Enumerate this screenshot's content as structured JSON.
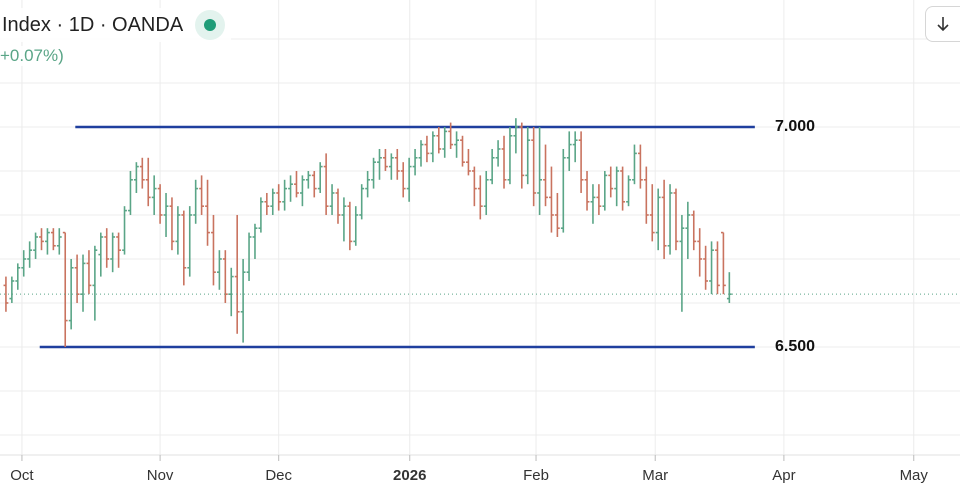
{
  "chart_data": {
    "type": "ohlc",
    "title": "Index · 1D · OANDA",
    "change_label": "+0.07%)",
    "up_color": "#5aa587",
    "down_color": "#c9735f",
    "xlim": [
      -4,
      157.9
    ],
    "ylim": [
      6.2545,
      7.2886
    ],
    "xticks": [
      {
        "value": -0.3,
        "label": "Oct"
      },
      {
        "value": 23,
        "label": "Nov"
      },
      {
        "value": 43,
        "label": "Dec"
      },
      {
        "value": 65.1,
        "label": "2026",
        "bold": true
      },
      {
        "value": 86.4,
        "label": "Feb"
      },
      {
        "value": 106.5,
        "label": "Mar"
      },
      {
        "value": 128.2,
        "label": "Apr"
      },
      {
        "value": 150.1,
        "label": "May"
      }
    ],
    "ygrid": [
      7.2,
      7.1,
      7.0,
      6.9,
      6.8,
      6.7,
      6.6,
      6.5,
      6.4,
      6.3
    ],
    "grid": true,
    "hlines": [
      {
        "value": 7.0,
        "label": "7.000",
        "x_from": 8.7,
        "x_to": 123.3,
        "color": "#1f3f9e"
      },
      {
        "value": 6.5,
        "label": "6.500",
        "x_from": 2.7,
        "x_to": 123.3,
        "color": "#1f3f9e"
      }
    ],
    "x": [
      -3,
      -2,
      -1,
      0,
      1,
      2,
      3,
      4,
      5,
      6,
      7,
      8,
      9,
      10,
      11,
      12,
      13,
      14,
      15,
      16,
      17,
      18,
      19,
      20,
      21,
      22,
      23,
      24,
      25,
      26,
      27,
      28,
      29,
      30,
      31,
      32,
      33,
      34,
      35,
      36,
      37,
      38,
      39,
      40,
      41,
      42,
      43,
      44,
      45,
      46,
      47,
      48,
      49,
      50,
      51,
      52,
      53,
      54,
      55,
      56,
      57,
      58,
      59,
      60,
      61,
      62,
      63,
      64,
      65,
      66,
      67,
      68,
      69,
      70,
      71,
      72,
      73,
      74,
      75,
      76,
      77,
      78,
      79,
      80,
      81,
      82,
      83,
      84,
      85,
      86,
      87,
      88,
      89,
      90,
      91,
      92,
      93,
      94,
      95,
      96,
      97,
      98,
      99,
      100,
      101,
      102,
      103,
      104,
      105,
      106,
      107,
      108,
      109,
      110,
      111,
      112,
      113,
      114,
      115,
      116,
      117,
      118,
      119
    ],
    "ohlc": [
      [
        6.64,
        6.66,
        6.58,
        6.6
      ],
      [
        6.61,
        6.66,
        6.6,
        6.65
      ],
      [
        6.65,
        6.69,
        6.63,
        6.68
      ],
      [
        6.68,
        6.72,
        6.66,
        6.7
      ],
      [
        6.7,
        6.74,
        6.68,
        6.72
      ],
      [
        6.72,
        6.76,
        6.7,
        6.75
      ],
      [
        6.75,
        6.77,
        6.72,
        6.74
      ],
      [
        6.74,
        6.77,
        6.71,
        6.76
      ],
      [
        6.76,
        6.77,
        6.72,
        6.73
      ],
      [
        6.73,
        6.77,
        6.71,
        6.75
      ],
      [
        6.76,
        6.76,
        6.5,
        6.56
      ],
      [
        6.56,
        6.7,
        6.54,
        6.68
      ],
      [
        6.68,
        6.71,
        6.6,
        6.62
      ],
      [
        6.62,
        6.71,
        6.58,
        6.69
      ],
      [
        6.69,
        6.72,
        6.62,
        6.64
      ],
      [
        6.64,
        6.73,
        6.56,
        6.72
      ],
      [
        6.71,
        6.76,
        6.66,
        6.75
      ],
      [
        6.75,
        6.77,
        6.68,
        6.7
      ],
      [
        6.7,
        6.76,
        6.67,
        6.75
      ],
      [
        6.75,
        6.76,
        6.68,
        6.72
      ],
      [
        6.72,
        6.82,
        6.71,
        6.81
      ],
      [
        6.81,
        6.9,
        6.8,
        6.88
      ],
      [
        6.88,
        6.92,
        6.85,
        6.91
      ],
      [
        6.91,
        6.93,
        6.86,
        6.88
      ],
      [
        6.88,
        6.93,
        6.82,
        6.84
      ],
      [
        6.84,
        6.89,
        6.8,
        6.86
      ],
      [
        6.86,
        6.87,
        6.78,
        6.8
      ],
      [
        6.8,
        6.85,
        6.75,
        6.82
      ],
      [
        6.82,
        6.84,
        6.72,
        6.74
      ],
      [
        6.74,
        6.82,
        6.71,
        6.8
      ],
      [
        6.8,
        6.81,
        6.64,
        6.68
      ],
      [
        6.68,
        6.82,
        6.66,
        6.8
      ],
      [
        6.8,
        6.88,
        6.78,
        6.86
      ],
      [
        6.86,
        6.89,
        6.8,
        6.82
      ],
      [
        6.82,
        6.88,
        6.73,
        6.76
      ],
      [
        6.76,
        6.8,
        6.64,
        6.67
      ],
      [
        6.67,
        6.72,
        6.63,
        6.7
      ],
      [
        6.7,
        6.72,
        6.6,
        6.62
      ],
      [
        6.62,
        6.68,
        6.57,
        6.66
      ],
      [
        6.66,
        6.8,
        6.53,
        6.58
      ],
      [
        6.58,
        6.7,
        6.51,
        6.67
      ],
      [
        6.67,
        6.76,
        6.65,
        6.75
      ],
      [
        6.75,
        6.78,
        6.7,
        6.77
      ],
      [
        6.77,
        6.84,
        6.76,
        6.83
      ],
      [
        6.83,
        6.85,
        6.8,
        6.82
      ],
      [
        6.82,
        6.86,
        6.8,
        6.85
      ],
      [
        6.85,
        6.87,
        6.81,
        6.83
      ],
      [
        6.83,
        6.88,
        6.81,
        6.86
      ],
      [
        6.86,
        6.89,
        6.83,
        6.87
      ],
      [
        6.87,
        6.9,
        6.84,
        6.85
      ],
      [
        6.85,
        6.89,
        6.82,
        6.88
      ],
      [
        6.88,
        6.9,
        6.86,
        6.89
      ],
      [
        6.89,
        6.9,
        6.84,
        6.86
      ],
      [
        6.86,
        6.92,
        6.85,
        6.91
      ],
      [
        6.91,
        6.94,
        6.8,
        6.82
      ],
      [
        6.82,
        6.87,
        6.8,
        6.85
      ],
      [
        6.85,
        6.86,
        6.78,
        6.8
      ],
      [
        6.8,
        6.84,
        6.74,
        6.82
      ],
      [
        6.82,
        6.83,
        6.72,
        6.74
      ],
      [
        6.74,
        6.82,
        6.73,
        6.8
      ],
      [
        6.8,
        6.87,
        6.79,
        6.86
      ],
      [
        6.86,
        6.9,
        6.84,
        6.88
      ],
      [
        6.88,
        6.93,
        6.86,
        6.92
      ],
      [
        6.92,
        6.95,
        6.88,
        6.93
      ],
      [
        6.93,
        6.95,
        6.9,
        6.91
      ],
      [
        6.91,
        6.94,
        6.88,
        6.93
      ],
      [
        6.93,
        6.95,
        6.88,
        6.9
      ],
      [
        6.9,
        6.92,
        6.84,
        6.86
      ],
      [
        6.86,
        6.93,
        6.83,
        6.91
      ],
      [
        6.91,
        6.95,
        6.89,
        6.93
      ],
      [
        6.93,
        6.97,
        6.91,
        6.96
      ],
      [
        6.96,
        6.98,
        6.92,
        6.94
      ],
      [
        6.94,
        6.99,
        6.92,
        6.98
      ],
      [
        6.98,
        7.0,
        6.94,
        6.95
      ],
      [
        6.95,
        7.0,
        6.93,
        6.99
      ],
      [
        6.99,
        7.01,
        6.95,
        6.96
      ],
      [
        6.96,
        6.99,
        6.93,
        6.97
      ],
      [
        6.97,
        6.98,
        6.91,
        6.92
      ],
      [
        6.92,
        6.95,
        6.89,
        6.9
      ],
      [
        6.9,
        6.91,
        6.82,
        6.86
      ],
      [
        6.86,
        6.89,
        6.79,
        6.82
      ],
      [
        6.82,
        6.9,
        6.8,
        6.88
      ],
      [
        6.88,
        6.95,
        6.87,
        6.93
      ],
      [
        6.93,
        6.97,
        6.91,
        6.95
      ],
      [
        6.95,
        6.98,
        6.86,
        6.88
      ],
      [
        6.88,
        7.0,
        6.87,
        6.98
      ],
      [
        6.98,
        7.02,
        6.94,
        7.0
      ],
      [
        7.0,
        7.01,
        6.86,
        6.89
      ],
      [
        6.89,
        7.0,
        6.87,
        6.97
      ],
      [
        6.97,
        7.0,
        6.82,
        6.85
      ],
      [
        6.85,
        7.0,
        6.8,
        6.88
      ],
      [
        6.88,
        6.96,
        6.82,
        6.84
      ],
      [
        6.84,
        6.91,
        6.76,
        6.8
      ],
      [
        6.8,
        6.85,
        6.75,
        6.77
      ],
      [
        6.77,
        6.95,
        6.76,
        6.93
      ],
      [
        6.93,
        6.99,
        6.9,
        6.96
      ],
      [
        6.96,
        6.99,
        6.92,
        6.97
      ],
      [
        6.97,
        6.99,
        6.85,
        6.88
      ],
      [
        6.88,
        6.9,
        6.81,
        6.83
      ],
      [
        6.83,
        6.87,
        6.78,
        6.84
      ],
      [
        6.84,
        6.87,
        6.8,
        6.82
      ],
      [
        6.82,
        6.9,
        6.81,
        6.89
      ],
      [
        6.89,
        6.91,
        6.84,
        6.86
      ],
      [
        6.86,
        6.91,
        6.82,
        6.9
      ],
      [
        6.9,
        6.91,
        6.81,
        6.83
      ],
      [
        6.83,
        6.89,
        6.82,
        6.88
      ],
      [
        6.88,
        6.96,
        6.87,
        6.94
      ],
      [
        6.94,
        6.96,
        6.86,
        6.88
      ],
      [
        6.88,
        6.91,
        6.78,
        6.8
      ],
      [
        6.8,
        6.87,
        6.74,
        6.76
      ],
      [
        6.76,
        6.86,
        6.72,
        6.84
      ],
      [
        6.84,
        6.88,
        6.7,
        6.73
      ],
      [
        6.73,
        6.87,
        6.71,
        6.85
      ],
      [
        6.85,
        6.86,
        6.72,
        6.74
      ],
      [
        6.74,
        6.8,
        6.58,
        6.77
      ],
      [
        6.77,
        6.83,
        6.7,
        6.8
      ],
      [
        6.8,
        6.81,
        6.72,
        6.74
      ],
      [
        6.74,
        6.77,
        6.66,
        6.7
      ],
      [
        6.7,
        6.73,
        6.63,
        6.65
      ],
      [
        6.65,
        6.74,
        6.62,
        6.72
      ],
      [
        6.72,
        6.74,
        6.62,
        6.64
      ],
      [
        6.76,
        6.76,
        6.62,
        6.64
      ],
      [
        6.61,
        6.67,
        6.6,
        6.62
      ]
    ]
  }
}
